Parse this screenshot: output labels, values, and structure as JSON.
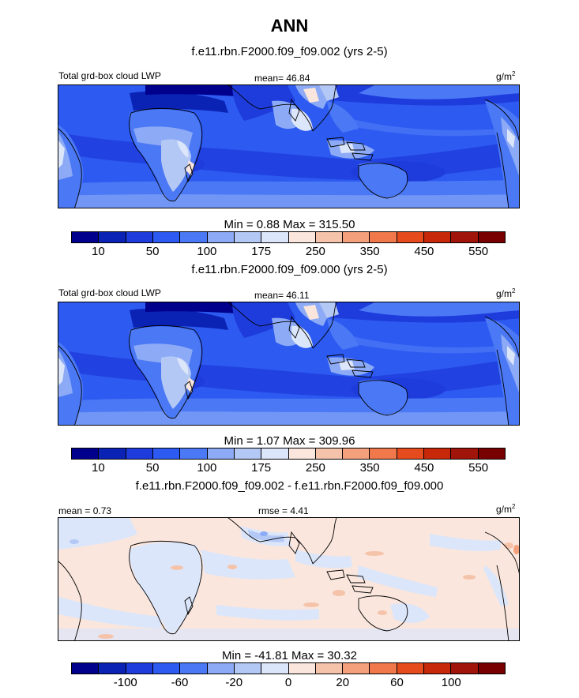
{
  "title": "ANN",
  "panels": [
    {
      "case_title": "f.e11.rbn.F2000.f09_f09.002 (yrs 2-5)",
      "left_label": "Total grd-box cloud LWP",
      "center_label": "mean=  46.84",
      "units": "g/m",
      "units_sup": "2",
      "minmax": "Min =   0.88 Max = 315.50"
    },
    {
      "case_title": "f.e11.rbn.F2000.f09_f09.000 (yrs 2-5)",
      "left_label": "Total grd-box cloud LWP",
      "center_label": "mean=  46.11",
      "units": "g/m",
      "units_sup": "2",
      "minmax": "Min =   1.07 Max = 309.96"
    },
    {
      "case_title": "f.e11.rbn.F2000.f09_f09.002 - f.e11.rbn.F2000.f09_f09.000",
      "left_label": "mean =   0.73",
      "center_label": "rmse =   4.41",
      "units": "g/m",
      "units_sup": "2",
      "minmax": "Min = -41.81 Max =  30.32"
    }
  ],
  "colorbar_abs": {
    "colors": [
      "#00008c",
      "#0a23b4",
      "#1e3cdc",
      "#2d5af0",
      "#4b78f5",
      "#8caaf5",
      "#b4c8f5",
      "#dce6fa",
      "#fae6dc",
      "#f5c3aa",
      "#f5a07d",
      "#f0784b",
      "#e64b1e",
      "#c8280a",
      "#a0140a",
      "#780000"
    ],
    "ticks": [
      "10",
      "50",
      "100",
      "175",
      "250",
      "350",
      "450",
      "550"
    ]
  },
  "colorbar_diff": {
    "colors": [
      "#00008c",
      "#0a23b4",
      "#1e3cdc",
      "#2d5af0",
      "#4b78f5",
      "#8caaf5",
      "#b4c8f5",
      "#dce6fa",
      "#fae6dc",
      "#f5c3aa",
      "#f5a07d",
      "#f0784b",
      "#e64b1e",
      "#c8280a",
      "#a0140a",
      "#780000"
    ],
    "ticks": [
      "-100",
      "-60",
      "-20",
      "0",
      "20",
      "60",
      "100"
    ]
  }
}
